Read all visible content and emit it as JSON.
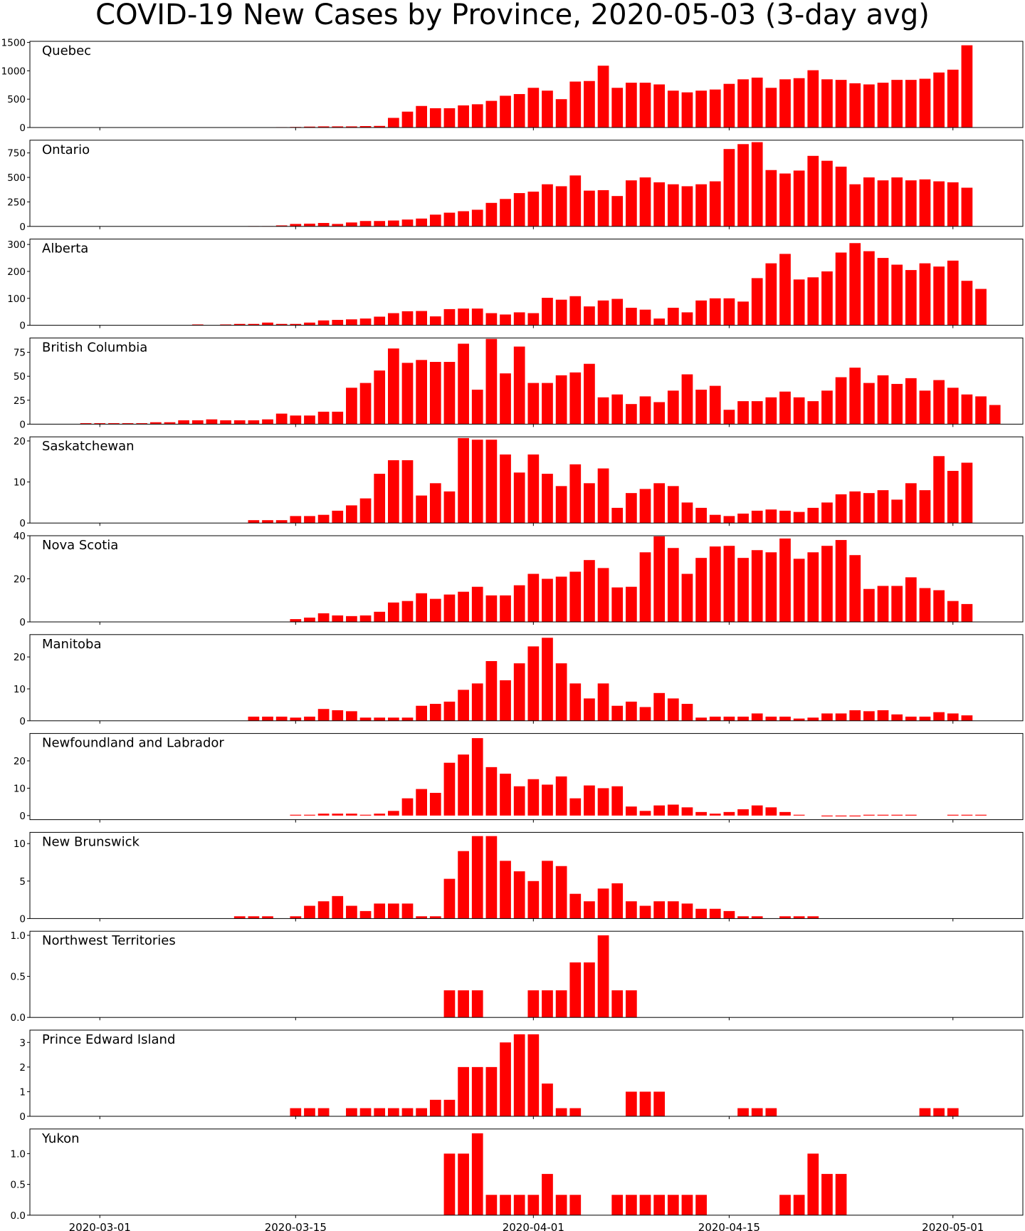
{
  "colors": {
    "bar": "#ff0000",
    "axis": "#000000",
    "background": "#ffffff"
  },
  "chart_data": {
    "type": "bar",
    "title": "COVID-19 New Cases by Province, 2020-05-03 (3-day avg)",
    "x_start": "2020-02-25",
    "x_end": "2020-05-06",
    "x_ticks": [
      "2020-03-01",
      "2020-03-15",
      "2020-04-01",
      "2020-04-15",
      "2020-05-01"
    ],
    "grid": false,
    "legend": "none",
    "panels": [
      {
        "name": "Quebec",
        "ylim": [
          0,
          1520
        ],
        "yticks": [
          0,
          500,
          1000,
          1500
        ],
        "ytick_labels": [
          "0",
          "500",
          "1000",
          "1500"
        ],
        "start_date": "2020-03-12",
        "values": [
          3,
          0,
          7,
          10,
          16,
          20,
          20,
          20,
          25,
          28,
          170,
          280,
          380,
          340,
          340,
          390,
          410,
          470,
          560,
          590,
          700,
          650,
          500,
          810,
          820,
          1090,
          700,
          790,
          790,
          760,
          650,
          620,
          650,
          670,
          770,
          850,
          880,
          700,
          850,
          870,
          1010,
          850,
          840,
          780,
          760,
          790,
          840,
          840,
          860,
          970,
          1020,
          1450
        ]
      },
      {
        "name": "Ontario",
        "ylim": [
          0,
          880
        ],
        "yticks": [
          0,
          250,
          500,
          750
        ],
        "ytick_labels": [
          "0",
          "250",
          "500",
          "750"
        ],
        "start_date": "2020-03-12",
        "values": [
          3,
          3,
          10,
          25,
          28,
          35,
          25,
          40,
          55,
          55,
          60,
          70,
          80,
          120,
          140,
          155,
          170,
          240,
          280,
          340,
          355,
          430,
          410,
          520,
          365,
          370,
          310,
          470,
          500,
          450,
          430,
          410,
          430,
          460,
          790,
          840,
          860,
          575,
          540,
          570,
          720,
          670,
          610,
          430,
          500,
          470,
          500,
          470,
          480,
          460,
          450,
          395
        ]
      },
      {
        "name": "Alberta",
        "ylim": [
          0,
          320
        ],
        "yticks": [
          0,
          100,
          200,
          300
        ],
        "ytick_labels": [
          "0",
          "100",
          "200",
          "300"
        ],
        "start_date": "2020-03-08",
        "values": [
          3,
          0,
          3,
          5,
          5,
          10,
          5,
          5,
          10,
          18,
          20,
          22,
          25,
          32,
          45,
          52,
          53,
          33,
          60,
          62,
          62,
          45,
          40,
          48,
          45,
          102,
          95,
          108,
          70,
          92,
          98,
          65,
          58,
          25,
          65,
          48,
          92,
          100,
          100,
          88,
          175,
          230,
          265,
          170,
          178,
          200,
          270,
          305,
          275,
          250,
          225,
          205,
          230,
          218,
          240,
          165,
          135
        ]
      },
      {
        "name": "British Columbia",
        "ylim": [
          0,
          90
        ],
        "yticks": [
          0,
          25,
          50,
          75
        ],
        "ytick_labels": [
          "0",
          "25",
          "50",
          "75"
        ],
        "start_date": "2020-02-29",
        "values": [
          1,
          1,
          1,
          1,
          1,
          2,
          2,
          4,
          4,
          5,
          4,
          4,
          4,
          5,
          11,
          9,
          9,
          13,
          13,
          38,
          43,
          56,
          79,
          64,
          67,
          65,
          65,
          84,
          36,
          89,
          53,
          81,
          43,
          43,
          51,
          54,
          63,
          28,
          31,
          21,
          29,
          23,
          35,
          52,
          36,
          40,
          15,
          24,
          24,
          28,
          34,
          28,
          24,
          35,
          49,
          59,
          43,
          51,
          42,
          48,
          35,
          46,
          38,
          31,
          29,
          20
        ]
      },
      {
        "name": "Saskatchewan",
        "ylim": [
          0,
          21
        ],
        "yticks": [
          0,
          10,
          20
        ],
        "ytick_labels": [
          "0",
          "10",
          "20"
        ],
        "start_date": "2020-03-12",
        "values": [
          0.7,
          0.7,
          0.7,
          1.7,
          1.7,
          2,
          3,
          4.3,
          6,
          12,
          15.3,
          15.3,
          6.7,
          9.7,
          7.7,
          20.7,
          20.3,
          20.3,
          16.7,
          12.3,
          16.7,
          12,
          9,
          14.3,
          9.7,
          13.3,
          3.7,
          7.3,
          8.3,
          9.7,
          9,
          5,
          3.7,
          2,
          1.7,
          2.3,
          3,
          3.3,
          3,
          2.7,
          3.7,
          5,
          7,
          7.7,
          7.3,
          8,
          5.7,
          9.7,
          8,
          16.3,
          12.7,
          14.7
        ]
      },
      {
        "name": "Nova Scotia",
        "ylim": [
          0,
          40
        ],
        "yticks": [
          0,
          20,
          40
        ],
        "ytick_labels": [
          "0",
          "20",
          "40"
        ],
        "start_date": "2020-03-15",
        "values": [
          1.3,
          2,
          4,
          3,
          2.7,
          3,
          4.7,
          9,
          9.7,
          13.3,
          10.7,
          12.7,
          14,
          16.3,
          12.3,
          12.3,
          17,
          22.3,
          20,
          21,
          23.3,
          28.7,
          25,
          16,
          16.3,
          32.3,
          39.7,
          34.3,
          22.3,
          29.7,
          35,
          35.3,
          29.7,
          33.3,
          32.3,
          38.7,
          29.3,
          32.3,
          35.3,
          38,
          31,
          15.3,
          16.7,
          16.7,
          20.7,
          15.7,
          14.7,
          9.7,
          8.3
        ]
      },
      {
        "name": "Manitoba",
        "ylim": [
          0,
          27
        ],
        "yticks": [
          0,
          10,
          20
        ],
        "ytick_labels": [
          "0",
          "10",
          "20"
        ],
        "start_date": "2020-03-12",
        "values": [
          1.3,
          1.3,
          1.3,
          1,
          1.3,
          3.7,
          3.3,
          3,
          1,
          1,
          1,
          1,
          4.7,
          5.3,
          6,
          9.7,
          11.7,
          18.7,
          12.7,
          18,
          23.3,
          26,
          18,
          11.7,
          7,
          11.7,
          4.7,
          6,
          4.3,
          8.7,
          7,
          5.3,
          1,
          1.3,
          1.3,
          1.3,
          2.3,
          1.3,
          1.3,
          0.7,
          1,
          2.3,
          2.3,
          3.3,
          3,
          3.3,
          2,
          1.3,
          1.3,
          2.7,
          2.3,
          1.7
        ]
      },
      {
        "name": "Newfoundland and Labrador",
        "ylim": [
          -1.5,
          30
        ],
        "yticks": [
          0,
          10,
          20
        ],
        "ytick_labels": [
          "0",
          "10",
          "20"
        ],
        "start_date": "2020-03-15",
        "values": [
          0.3,
          0.3,
          0.7,
          0.7,
          0.7,
          0.3,
          0.7,
          1.7,
          6.3,
          9.7,
          8.3,
          19.3,
          22.3,
          28.3,
          17.7,
          15.3,
          10.7,
          13.3,
          11.3,
          14.3,
          6.3,
          11,
          10,
          10.7,
          3.3,
          1.7,
          3.7,
          4,
          3,
          1.3,
          0.7,
          1.3,
          2.3,
          3.7,
          3,
          1.3,
          0.3,
          0,
          -0.3,
          -0.3,
          -0.3,
          0.3,
          0.3,
          0.3,
          0.3,
          0,
          0,
          0.3,
          0.3,
          0.3
        ]
      },
      {
        "name": "New Brunswick",
        "ylim": [
          0,
          11.5
        ],
        "yticks": [
          0,
          5,
          10
        ],
        "ytick_labels": [
          "0",
          "5",
          "10"
        ],
        "start_date": "2020-03-11",
        "values": [
          0.3,
          0.3,
          0.3,
          0,
          0.3,
          1.7,
          2.3,
          3,
          1.7,
          1,
          2,
          2,
          2,
          0.3,
          0.3,
          5.3,
          9,
          11,
          11,
          7.7,
          6.3,
          5,
          7.7,
          7,
          3.3,
          2.3,
          4,
          4.7,
          2.3,
          1.7,
          2.3,
          2.3,
          2,
          1.3,
          1.3,
          1,
          0.3,
          0.3,
          0,
          0.3,
          0.3,
          0.3
        ]
      },
      {
        "name": "Northwest Territories",
        "ylim": [
          0,
          1.05
        ],
        "yticks": [
          0,
          0.5,
          1.0
        ],
        "ytick_labels": [
          "0.0",
          "0.5",
          "1.0"
        ],
        "start_date": "2020-03-26",
        "values": [
          0.33,
          0.33,
          0.33,
          0,
          0,
          0,
          0.33,
          0.33,
          0.33,
          0.67,
          0.67,
          1.0,
          0.33,
          0.33
        ]
      },
      {
        "name": "Prince Edward Island",
        "ylim": [
          0,
          3.5
        ],
        "yticks": [
          0,
          1,
          2,
          3
        ],
        "ytick_labels": [
          "0",
          "1",
          "2",
          "3"
        ],
        "start_date": "2020-03-15",
        "values": [
          0.33,
          0.33,
          0.33,
          0,
          0.33,
          0.33,
          0.33,
          0.33,
          0.33,
          0.33,
          0.67,
          0.67,
          2,
          2,
          2,
          3,
          3.33,
          3.33,
          1.33,
          0.33,
          0.33,
          0,
          0,
          0,
          1,
          1,
          1,
          0,
          0,
          0,
          0,
          0,
          0.33,
          0.33,
          0.33,
          0,
          0,
          0,
          0,
          0,
          0,
          0,
          0,
          0,
          0,
          0.33,
          0.33,
          0.33
        ]
      },
      {
        "name": "Yukon",
        "ylim": [
          0,
          1.4
        ],
        "yticks": [
          0,
          0.5,
          1.0
        ],
        "ytick_labels": [
          "0.0",
          "0.5",
          "1.0"
        ],
        "start_date": "2020-03-26",
        "values": [
          1,
          1,
          1.33,
          0.33,
          0.33,
          0.33,
          0.33,
          0.67,
          0.33,
          0.33,
          0,
          0,
          0.33,
          0.33,
          0.33,
          0.33,
          0.33,
          0.33,
          0.33,
          0,
          0,
          0,
          0,
          0,
          0.33,
          0.33,
          1,
          0.67,
          0.67
        ]
      }
    ]
  }
}
